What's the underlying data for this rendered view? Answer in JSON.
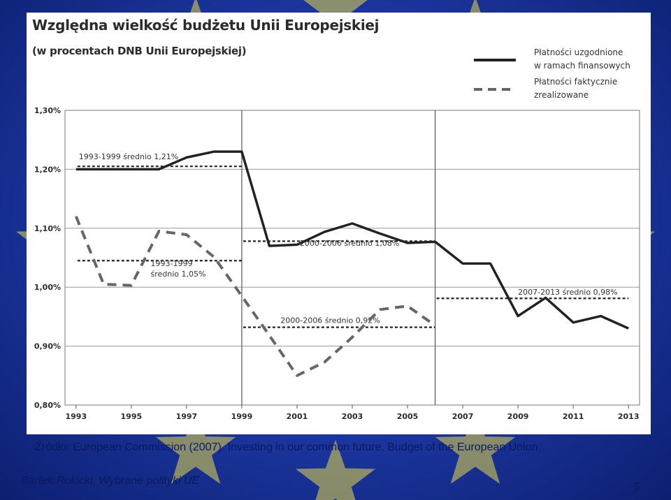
{
  "chart_data": {
    "type": "line",
    "title": "Względna wielkość budżetu Unii Europejskiej",
    "subtitle": "(w procentach DNB Unii Europejskiej)",
    "x": [
      1993,
      1994,
      1995,
      1996,
      1997,
      1998,
      1999,
      2000,
      2001,
      2002,
      2003,
      2004,
      2005,
      2006,
      2007,
      2008,
      2009,
      2010,
      2011,
      2012,
      2013
    ],
    "x_tick_labels": [
      "1993",
      "1995",
      "1997",
      "1999",
      "2001",
      "2003",
      "2005",
      "2007",
      "2009",
      "2011",
      "2013"
    ],
    "x_ticks": [
      1993,
      1995,
      1997,
      1999,
      2001,
      2003,
      2005,
      2007,
      2009,
      2011,
      2013
    ],
    "y_tick_labels": [
      "0,80%",
      "0,90%",
      "1,00%",
      "1,10%",
      "1,20%",
      "1,30%"
    ],
    "y_ticks": [
      0.8,
      0.9,
      1.0,
      1.1,
      1.2,
      1.3
    ],
    "ylim": [
      0.8,
      1.3
    ],
    "series": [
      {
        "name": "Płatności uzgodnione w ramach finansowych",
        "style": "solid",
        "x": [
          1993,
          1994,
          1995,
          1996,
          1997,
          1998,
          1999,
          2000,
          2001,
          2002,
          2003,
          2004,
          2005,
          2006,
          2007,
          2008,
          2009,
          2010,
          2011,
          2012,
          2013
        ],
        "values": [
          1.2,
          1.2,
          1.2,
          1.2,
          1.22,
          1.23,
          1.23,
          1.07,
          1.072,
          1.094,
          1.108,
          1.091,
          1.075,
          1.077,
          1.04,
          1.04,
          0.951,
          0.982,
          0.94,
          0.951,
          0.93
        ]
      },
      {
        "name": "Płatności faktycznie zrealizowane",
        "style": "dashed",
        "x": [
          1993,
          1994,
          1995,
          1996,
          1997,
          1998,
          1999,
          2000,
          2001,
          2002,
          2003,
          2004,
          2005,
          2006
        ],
        "values": [
          1.12,
          1.005,
          1.003,
          1.095,
          1.089,
          1.051,
          0.985,
          0.918,
          0.85,
          0.873,
          0.915,
          0.962,
          0.968,
          0.935
        ]
      }
    ],
    "annotations": [
      {
        "text": "1993-1999  średnio 1,21%",
        "x_from": 1993,
        "x_to": 1999,
        "y": 1.205,
        "style": "dotted"
      },
      {
        "text": "1993-1999",
        "text2": "średnio 1,05%",
        "x_from": 1993,
        "x_to": 1999,
        "y": 1.045,
        "style": "dotted"
      },
      {
        "text": "2000-2006  średnio 1,08%",
        "x_from": 1999,
        "x_to": 2006,
        "y": 1.078,
        "style": "dotted"
      },
      {
        "text": "2000-2006  średnio 0,92%",
        "x_from": 1999,
        "x_to": 2006,
        "y": 0.932,
        "style": "dotted"
      },
      {
        "text": "2007-2013  średnio 0,98%",
        "x_from": 2006,
        "x_to": 2013,
        "y": 0.981,
        "style": "dotted"
      }
    ],
    "period_dividers": [
      1999,
      2006
    ],
    "legend_position": "top-right",
    "grid": true
  },
  "legend": {
    "solid_line1": "Płatności uzgodnione",
    "solid_line2": "w ramach finansowych",
    "dashed_line1": "Płatności faktycznie",
    "dashed_line2": "zrealizowane"
  },
  "footer": {
    "source": "Źródło: European Commission (2007). Investing in our common future. Budget of the European Union.",
    "author": "Bartek Rokicki, Wybrane polityki UE",
    "page_number": "5"
  },
  "colors": {
    "background": "#1e3aa8",
    "panel": "#ffffff",
    "line": "#222222",
    "dashed": "#666666",
    "grid": "#999999",
    "footer_text": "#0a1a5c",
    "stars": "#ffe94d"
  }
}
